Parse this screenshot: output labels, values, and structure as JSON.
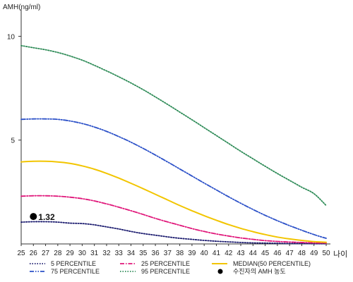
{
  "chart_data": {
    "type": "line",
    "ylabel": "AMH(ng/ml)",
    "xlabel": "나이",
    "xlim": [
      25,
      50
    ],
    "ylim": [
      0,
      11
    ],
    "yticks": [
      5,
      10
    ],
    "x": [
      25,
      26,
      27,
      28,
      29,
      30,
      31,
      32,
      33,
      34,
      35,
      36,
      37,
      38,
      39,
      40,
      41,
      42,
      43,
      44,
      45,
      46,
      47,
      48,
      49,
      50
    ],
    "series": [
      {
        "name": "5 PERCENTILE",
        "color": "#1a1a6e",
        "style": "dotted",
        "values": [
          1.05,
          1.07,
          1.07,
          1.05,
          1.0,
          0.98,
          0.92,
          0.82,
          0.72,
          0.6,
          0.5,
          0.42,
          0.34,
          0.27,
          0.22,
          0.17,
          0.13,
          0.1,
          0.07,
          0.05,
          0.04,
          0.03,
          0.02,
          0.02,
          0.01,
          0.01
        ]
      },
      {
        "name": "25 PERCENTILE",
        "color": "#e0177a",
        "style": "dashdot",
        "values": [
          2.3,
          2.32,
          2.32,
          2.3,
          2.25,
          2.18,
          2.07,
          1.93,
          1.77,
          1.6,
          1.42,
          1.23,
          1.06,
          0.9,
          0.74,
          0.6,
          0.48,
          0.38,
          0.29,
          0.22,
          0.16,
          0.12,
          0.09,
          0.07,
          0.05,
          0.04
        ]
      },
      {
        "name": "MEDIAN(50 PERCENTILE)",
        "color": "#f2c500",
        "style": "solid",
        "values": [
          3.95,
          3.98,
          3.98,
          3.95,
          3.88,
          3.76,
          3.6,
          3.4,
          3.17,
          2.92,
          2.66,
          2.39,
          2.12,
          1.85,
          1.6,
          1.36,
          1.14,
          0.93,
          0.75,
          0.59,
          0.45,
          0.33,
          0.24,
          0.17,
          0.11,
          0.08
        ]
      },
      {
        "name": "75 PERCENTILE",
        "color": "#2b50c8",
        "style": "dashdotdot",
        "values": [
          6.0,
          6.02,
          6.02,
          6.0,
          5.92,
          5.8,
          5.63,
          5.42,
          5.17,
          4.9,
          4.6,
          4.28,
          3.95,
          3.61,
          3.27,
          2.93,
          2.6,
          2.27,
          1.96,
          1.66,
          1.38,
          1.12,
          0.88,
          0.66,
          0.45,
          0.27
        ]
      },
      {
        "name": "95 PERCENTILE",
        "color": "#2e8b57",
        "style": "dotted",
        "values": [
          9.55,
          9.45,
          9.35,
          9.22,
          9.05,
          8.85,
          8.6,
          8.33,
          8.05,
          7.75,
          7.43,
          7.08,
          6.72,
          6.35,
          5.98,
          5.6,
          5.22,
          4.84,
          4.46,
          4.1,
          3.74,
          3.39,
          3.06,
          2.73,
          2.42,
          1.85
        ]
      }
    ],
    "marker": {
      "x": 26,
      "y": 1.32,
      "label": "1.32",
      "legend": "수진자의 AMH 농도",
      "color": "#000000"
    },
    "legend_position": "bottom"
  }
}
